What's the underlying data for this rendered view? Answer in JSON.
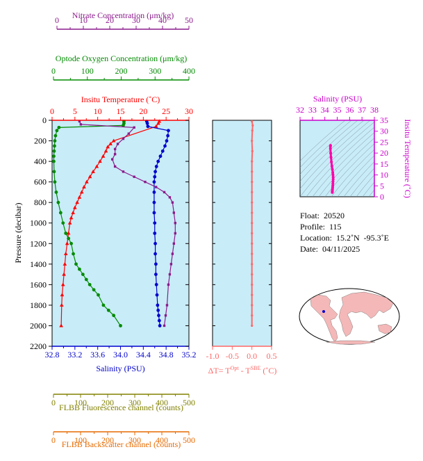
{
  "axes_top": {
    "nitrate": {
      "label": "Nitrate Concentration (μm/kg)",
      "ticks": [
        "0",
        "10",
        "20",
        "30",
        "40",
        "50"
      ],
      "color": "#8b1a8b"
    },
    "oxygen": {
      "label": "Optode Oxygen Concentration (μm/kg)",
      "ticks": [
        "0",
        "100",
        "200",
        "300",
        "400"
      ],
      "color": "#008b00"
    },
    "temperature": {
      "label": "Insitu Temperature (˚C)",
      "ticks": [
        "0",
        "5",
        "10",
        "15",
        "20",
        "25",
        "30"
      ],
      "color": "#ff0000"
    }
  },
  "axes_bottom": {
    "salinity": {
      "label": "Salinity (PSU)",
      "ticks": [
        "32.8",
        "33.2",
        "33.6",
        "34.0",
        "34.4",
        "34.8",
        "35.2"
      ],
      "color": "#0000cd"
    },
    "fluorescence": {
      "label": "FLBB Fluorescence channel (counts)",
      "ticks": [
        "0",
        "100",
        "200",
        "300",
        "400",
        "500"
      ],
      "color": "#808000"
    },
    "backscatter": {
      "label": "FLBB Backscatter channel (counts)",
      "ticks": [
        "0",
        "100",
        "200",
        "300",
        "400",
        "500"
      ],
      "color": "#e66a00"
    }
  },
  "pressure_axis": {
    "label": "Pressure (decibar)",
    "ticks": [
      "0",
      "200",
      "400",
      "600",
      "800",
      "1000",
      "1200",
      "1400",
      "1600",
      "1800",
      "2000",
      "2200"
    ]
  },
  "delta_t_axis": {
    "label_prefix": "ΔT= T",
    "sup1": "Opt",
    "label_mid": " - T",
    "sup2": "SBE",
    "label_suffix": " (˚C)",
    "ticks": [
      "-1.0",
      "-0.5",
      "0.0",
      "0.5"
    ],
    "color": "#ff6666"
  },
  "ts_diagram": {
    "top_label": "Salinity (PSU)",
    "top_ticks": [
      "32",
      "33",
      "34",
      "35",
      "36",
      "37",
      "38"
    ],
    "right_label": "Insitu Temperature (˚C)",
    "right_ticks": [
      "0",
      "5",
      "10",
      "15",
      "20",
      "25",
      "30",
      "35"
    ],
    "color": "#cc00cc"
  },
  "info": {
    "float": "Float:  20520",
    "profile": "Profile:  115",
    "location": "Location:  15.2˚N  -95.3˚E",
    "date": "Date:  04/11/2025"
  },
  "colors": {
    "panel_bg": "#c8ecf8",
    "temperature": "#ff0000",
    "salinity": "#0000cd",
    "oxygen": "#008b00",
    "nitrate": "#8b1a8b",
    "delta": "#ff6666",
    "ts": "#ff00aa"
  },
  "chart_data": [
    {
      "type": "line",
      "title": "",
      "ylabel": "Pressure (decibar)",
      "ylim": [
        2200,
        0
      ],
      "series": [
        {
          "name": "Insitu Temperature",
          "xlim": [
            0,
            30
          ],
          "x": [
            23.5,
            23.3,
            22.8,
            13.5,
            12.8,
            12.2,
            11.8,
            11.2,
            10.5,
            9.8,
            9.0,
            8.3,
            7.6,
            7.0,
            6.5,
            6.0,
            5.5,
            5.0,
            4.6,
            4.2,
            3.9,
            3.6,
            3.3,
            3.0,
            2.8,
            2.6,
            2.4,
            2.2,
            2.1,
            2.0
          ],
          "y": [
            10,
            30,
            60,
            200,
            230,
            260,
            300,
            350,
            400,
            450,
            500,
            550,
            600,
            650,
            700,
            750,
            800,
            850,
            900,
            950,
            1000,
            1100,
            1200,
            1300,
            1400,
            1500,
            1600,
            1700,
            1800,
            2000
          ]
        },
        {
          "name": "Salinity",
          "xlim": [
            32.8,
            35.2
          ],
          "x": [
            34.46,
            34.47,
            34.48,
            34.84,
            34.83,
            34.81,
            34.78,
            34.74,
            34.7,
            34.66,
            34.63,
            34.61,
            34.6,
            34.59,
            34.59,
            34.59,
            34.59,
            34.6,
            34.6,
            34.61,
            34.61,
            34.62,
            34.62,
            34.63,
            34.64,
            34.65,
            34.66,
            34.67,
            34.68,
            34.69
          ],
          "y": [
            10,
            30,
            60,
            100,
            150,
            200,
            250,
            300,
            350,
            400,
            450,
            500,
            550,
            600,
            700,
            800,
            900,
            1000,
            1100,
            1200,
            1300,
            1400,
            1500,
            1600,
            1700,
            1800,
            1850,
            1900,
            1950,
            2000
          ]
        },
        {
          "name": "Optode Oxygen Concentration",
          "xlim": [
            0,
            400
          ],
          "x": [
            210,
            210,
            208,
            20,
            14,
            10,
            8,
            7,
            6,
            5,
            5,
            6,
            8,
            12,
            18,
            25,
            32,
            40,
            48,
            56,
            62,
            70,
            80,
            90,
            100,
            110,
            122,
            135,
            150,
            165,
            180,
            200
          ],
          "y": [
            10,
            30,
            50,
            70,
            100,
            150,
            200,
            250,
            300,
            350,
            400,
            500,
            600,
            700,
            800,
            900,
            1000,
            1100,
            1150,
            1200,
            1300,
            1400,
            1450,
            1500,
            1550,
            1600,
            1650,
            1700,
            1800,
            1850,
            1900,
            2000
          ]
        },
        {
          "name": "Nitrate Concentration",
          "xlim": [
            0,
            50
          ],
          "x": [
            10,
            10.5,
            30,
            28,
            26,
            24,
            23,
            23,
            22,
            23,
            26,
            30,
            34,
            38,
            41,
            43,
            44,
            44.5,
            45,
            45,
            44.5,
            44,
            43.5,
            43,
            42.5,
            42,
            41.5,
            41
          ],
          "y": [
            10,
            40,
            70,
            130,
            180,
            230,
            280,
            330,
            380,
            450,
            500,
            550,
            600,
            650,
            700,
            750,
            800,
            900,
            1000,
            1100,
            1200,
            1300,
            1400,
            1500,
            1600,
            1800,
            1900,
            2000
          ]
        },
        {
          "name": "ΔT",
          "xlim": [
            -1.0,
            0.5
          ],
          "x": [
            0.0,
            0.02,
            0.01,
            0.0,
            0.01,
            0.0,
            0.0,
            0.0,
            0.0,
            0.0,
            0.0,
            0.0,
            0.0,
            0.0,
            0.0,
            0.0,
            0.0,
            0.0,
            0.0,
            0.0,
            0.0,
            0.0
          ],
          "y": [
            10,
            50,
            100,
            200,
            300,
            400,
            500,
            600,
            700,
            800,
            900,
            1000,
            1100,
            1200,
            1300,
            1400,
            1500,
            1600,
            1700,
            1800,
            1900,
            2000
          ]
        }
      ]
    },
    {
      "type": "scatter",
      "title": "",
      "xlabel": "Salinity (PSU)",
      "ylabel": "Insitu Temperature (˚C)",
      "xlim": [
        32,
        38
      ],
      "ylim": [
        0,
        35
      ],
      "x": [
        34.46,
        34.45,
        34.45,
        34.47,
        34.5,
        34.53,
        34.57,
        34.61,
        34.64,
        34.66,
        34.67,
        34.67,
        34.66,
        34.65,
        34.64,
        34.63,
        34.62,
        34.61,
        34.6,
        34.6
      ],
      "y": [
        23.5,
        23.0,
        22.0,
        20.0,
        18.0,
        16.0,
        14.0,
        12.5,
        11.0,
        10.0,
        9.0,
        8.0,
        7.0,
        6.0,
        5.0,
        4.2,
        3.5,
        2.8,
        2.3,
        2.0
      ]
    }
  ]
}
